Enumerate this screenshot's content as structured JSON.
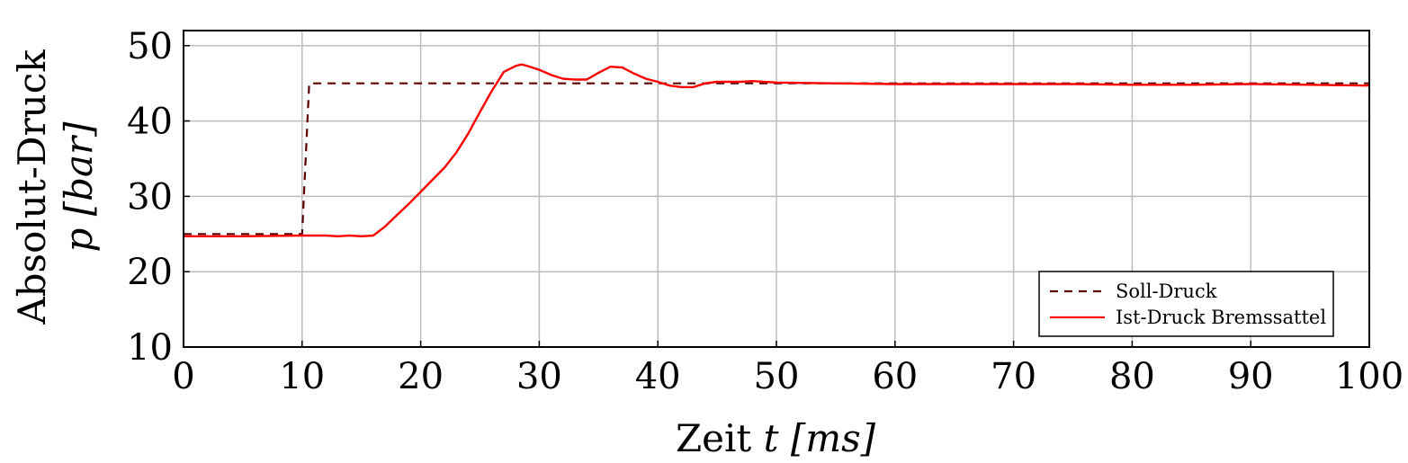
{
  "chart_data": {
    "type": "line",
    "xlabel_parts": {
      "word": "Zeit",
      "var": "t",
      "unit": "[ms]"
    },
    "ylabel_parts": {
      "line1": "Absolut-Druck",
      "var": "p",
      "unit": "[bar]"
    },
    "xlim": [
      0,
      100
    ],
    "ylim": [
      10,
      52
    ],
    "xticks": [
      0,
      10,
      20,
      30,
      40,
      50,
      60,
      70,
      80,
      90,
      100
    ],
    "yticks": [
      10,
      20,
      30,
      40,
      50
    ],
    "grid": true,
    "legend_position": "bottom-right",
    "series": [
      {
        "name": "Soll-Druck",
        "style": "dashed",
        "color": "#5a0000",
        "x": [
          0,
          10,
          10.6,
          100
        ],
        "y": [
          25,
          25,
          45,
          45
        ]
      },
      {
        "name": "Ist-Druck Bremssattel",
        "style": "solid",
        "color": "#ff0000",
        "x": [
          0,
          5,
          10,
          12,
          13,
          14,
          15,
          16,
          17,
          18,
          19,
          20,
          21,
          22,
          23,
          24,
          25,
          26,
          27,
          28,
          28.5,
          29,
          30,
          31,
          32,
          33,
          34,
          35,
          36,
          37,
          38,
          39,
          40,
          41,
          42,
          43,
          44,
          45,
          46,
          47,
          48,
          50,
          55,
          60,
          65,
          70,
          75,
          80,
          85,
          90,
          95,
          100
        ],
        "y": [
          24.7,
          24.7,
          24.8,
          24.8,
          24.7,
          24.8,
          24.7,
          24.8,
          26,
          27.5,
          29,
          30.6,
          32.2,
          33.8,
          35.8,
          38.3,
          41.2,
          44,
          46.5,
          47.3,
          47.5,
          47.3,
          46.8,
          46.1,
          45.6,
          45.5,
          45.5,
          46.4,
          47.2,
          47.1,
          46.3,
          45.6,
          45.2,
          44.7,
          44.5,
          44.5,
          45.0,
          45.2,
          45.2,
          45.2,
          45.3,
          45.1,
          45.0,
          44.9,
          44.9,
          44.9,
          44.9,
          44.8,
          44.8,
          44.9,
          44.8,
          44.7
        ]
      }
    ]
  }
}
